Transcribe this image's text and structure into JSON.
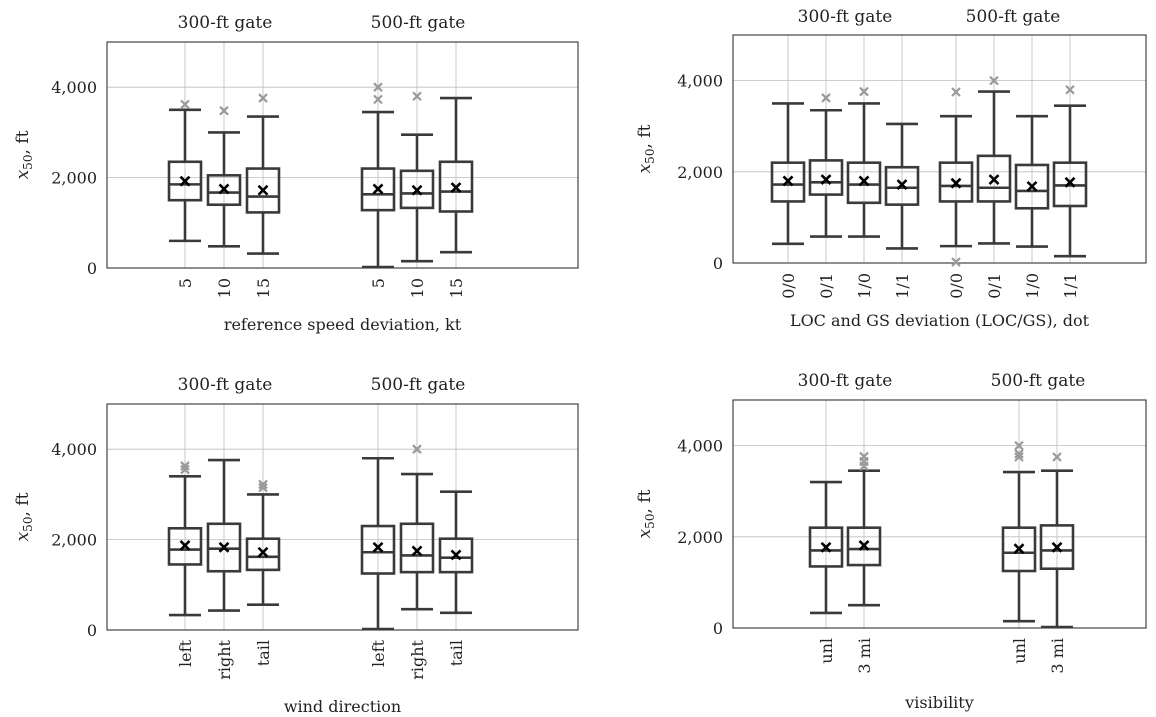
{
  "chart_data": [
    {
      "type": "boxplot",
      "panel": "top-left",
      "xlabel": "reference speed deviation, kt",
      "ylabel_var": "x",
      "ylabel_sub": "50",
      "ylabel_unit": ", ft",
      "ylim": [
        0,
        5000
      ],
      "yticks": [
        0,
        2000,
        4000
      ],
      "ytick_labels": [
        "0",
        "2,000",
        "4,000"
      ],
      "grid": true,
      "groups": [
        {
          "title": "300-ft gate",
          "categories": [
            "5",
            "10",
            "15"
          ],
          "boxes": [
            {
              "min": 600,
              "q1": 1500,
              "median": 1850,
              "q3": 2350,
              "max": 3500,
              "mean": 1920,
              "outliers": [
                3620
              ]
            },
            {
              "min": 480,
              "q1": 1400,
              "median": 1670,
              "q3": 2050,
              "max": 3000,
              "mean": 1750,
              "outliers": [
                3480
              ]
            },
            {
              "min": 320,
              "q1": 1230,
              "median": 1580,
              "q3": 2200,
              "max": 3350,
              "mean": 1720,
              "outliers": [
                3760
              ]
            }
          ]
        },
        {
          "title": "500-ft gate",
          "categories": [
            "5",
            "10",
            "15"
          ],
          "boxes": [
            {
              "min": 20,
              "q1": 1280,
              "median": 1630,
              "q3": 2200,
              "max": 3450,
              "mean": 1750,
              "outliers": [
                3730,
                4000
              ]
            },
            {
              "min": 150,
              "q1": 1330,
              "median": 1650,
              "q3": 2150,
              "max": 2950,
              "mean": 1720,
              "outliers": [
                3800
              ]
            },
            {
              "min": 350,
              "q1": 1250,
              "median": 1690,
              "q3": 2350,
              "max": 3760,
              "mean": 1780,
              "outliers": []
            }
          ]
        }
      ]
    },
    {
      "type": "boxplot",
      "panel": "top-right",
      "xlabel": "LOC and GS deviation (LOC/GS), dot",
      "ylabel_var": "x",
      "ylabel_sub": "50",
      "ylabel_unit": ", ft",
      "ylim": [
        0,
        5000
      ],
      "yticks": [
        0,
        2000,
        4000
      ],
      "ytick_labels": [
        "0",
        "2,000",
        "4,000"
      ],
      "grid": true,
      "groups": [
        {
          "title": "300-ft gate",
          "categories": [
            "0/0",
            "0/1",
            "1/0",
            "1/1"
          ],
          "boxes": [
            {
              "min": 420,
              "q1": 1350,
              "median": 1720,
              "q3": 2200,
              "max": 3500,
              "mean": 1800,
              "outliers": []
            },
            {
              "min": 580,
              "q1": 1500,
              "median": 1770,
              "q3": 2250,
              "max": 3350,
              "mean": 1830,
              "outliers": [
                3620
              ]
            },
            {
              "min": 580,
              "q1": 1320,
              "median": 1720,
              "q3": 2200,
              "max": 3500,
              "mean": 1800,
              "outliers": [
                3760
              ]
            },
            {
              "min": 320,
              "q1": 1280,
              "median": 1650,
              "q3": 2100,
              "max": 3050,
              "mean": 1720,
              "outliers": []
            }
          ]
        },
        {
          "title": "500-ft gate",
          "categories": [
            "0/0",
            "0/1",
            "1/0",
            "1/1"
          ],
          "boxes": [
            {
              "min": 370,
              "q1": 1350,
              "median": 1690,
              "q3": 2200,
              "max": 3220,
              "mean": 1750,
              "outliers": [
                20,
                3750
              ]
            },
            {
              "min": 430,
              "q1": 1350,
              "median": 1650,
              "q3": 2350,
              "max": 3760,
              "mean": 1830,
              "outliers": [
                4000
              ]
            },
            {
              "min": 360,
              "q1": 1200,
              "median": 1580,
              "q3": 2150,
              "max": 3220,
              "mean": 1680,
              "outliers": []
            },
            {
              "min": 150,
              "q1": 1250,
              "median": 1700,
              "q3": 2200,
              "max": 3450,
              "mean": 1770,
              "outliers": [
                3800
              ]
            }
          ]
        }
      ]
    },
    {
      "type": "boxplot",
      "panel": "bottom-left",
      "xlabel": "wind direction",
      "ylabel_var": "x",
      "ylabel_sub": "50",
      "ylabel_unit": ", ft",
      "ylim": [
        0,
        5000
      ],
      "yticks": [
        0,
        2000,
        4000
      ],
      "ytick_labels": [
        "0",
        "2,000",
        "4,000"
      ],
      "grid": true,
      "groups": [
        {
          "title": "300-ft gate",
          "categories": [
            "left",
            "right",
            "tail"
          ],
          "boxes": [
            {
              "min": 330,
              "q1": 1450,
              "median": 1780,
              "q3": 2250,
              "max": 3400,
              "mean": 1870,
              "outliers": [
                3550,
                3630
              ]
            },
            {
              "min": 430,
              "q1": 1300,
              "median": 1800,
              "q3": 2350,
              "max": 3760,
              "mean": 1830,
              "outliers": []
            },
            {
              "min": 560,
              "q1": 1330,
              "median": 1620,
              "q3": 2020,
              "max": 3000,
              "mean": 1720,
              "outliers": [
                3150,
                3220
              ]
            }
          ]
        },
        {
          "title": "500-ft gate",
          "categories": [
            "left",
            "right",
            "tail"
          ],
          "boxes": [
            {
              "min": 20,
              "q1": 1250,
              "median": 1720,
              "q3": 2300,
              "max": 3800,
              "mean": 1830,
              "outliers": []
            },
            {
              "min": 460,
              "q1": 1280,
              "median": 1650,
              "q3": 2350,
              "max": 3450,
              "mean": 1750,
              "outliers": [
                4000
              ]
            },
            {
              "min": 380,
              "q1": 1280,
              "median": 1600,
              "q3": 2020,
              "max": 3060,
              "mean": 1660,
              "outliers": []
            }
          ]
        }
      ]
    },
    {
      "type": "boxplot",
      "panel": "bottom-right",
      "xlabel": "visibility",
      "ylabel_var": "x",
      "ylabel_sub": "50",
      "ylabel_unit": ", ft",
      "ylim": [
        0,
        5000
      ],
      "yticks": [
        0,
        2000,
        4000
      ],
      "ytick_labels": [
        "0",
        "2,000",
        "4,000"
      ],
      "grid": true,
      "groups": [
        {
          "title": "300-ft gate",
          "categories": [
            "unl",
            "3 mi"
          ],
          "boxes": [
            {
              "min": 330,
              "q1": 1350,
              "median": 1700,
              "q3": 2200,
              "max": 3200,
              "mean": 1770,
              "outliers": []
            },
            {
              "min": 500,
              "q1": 1380,
              "median": 1730,
              "q3": 2200,
              "max": 3450,
              "mean": 1810,
              "outliers": [
                3550,
                3650,
                3760
              ]
            }
          ]
        },
        {
          "title": "500-ft gate",
          "categories": [
            "unl",
            "3 mi"
          ],
          "boxes": [
            {
              "min": 150,
              "q1": 1250,
              "median": 1650,
              "q3": 2200,
              "max": 3420,
              "mean": 1740,
              "outliers": [
                3750,
                3820,
                4000
              ]
            },
            {
              "min": 20,
              "q1": 1300,
              "median": 1700,
              "q3": 2250,
              "max": 3450,
              "mean": 1770,
              "outliers": [
                3750
              ]
            }
          ]
        }
      ]
    }
  ]
}
